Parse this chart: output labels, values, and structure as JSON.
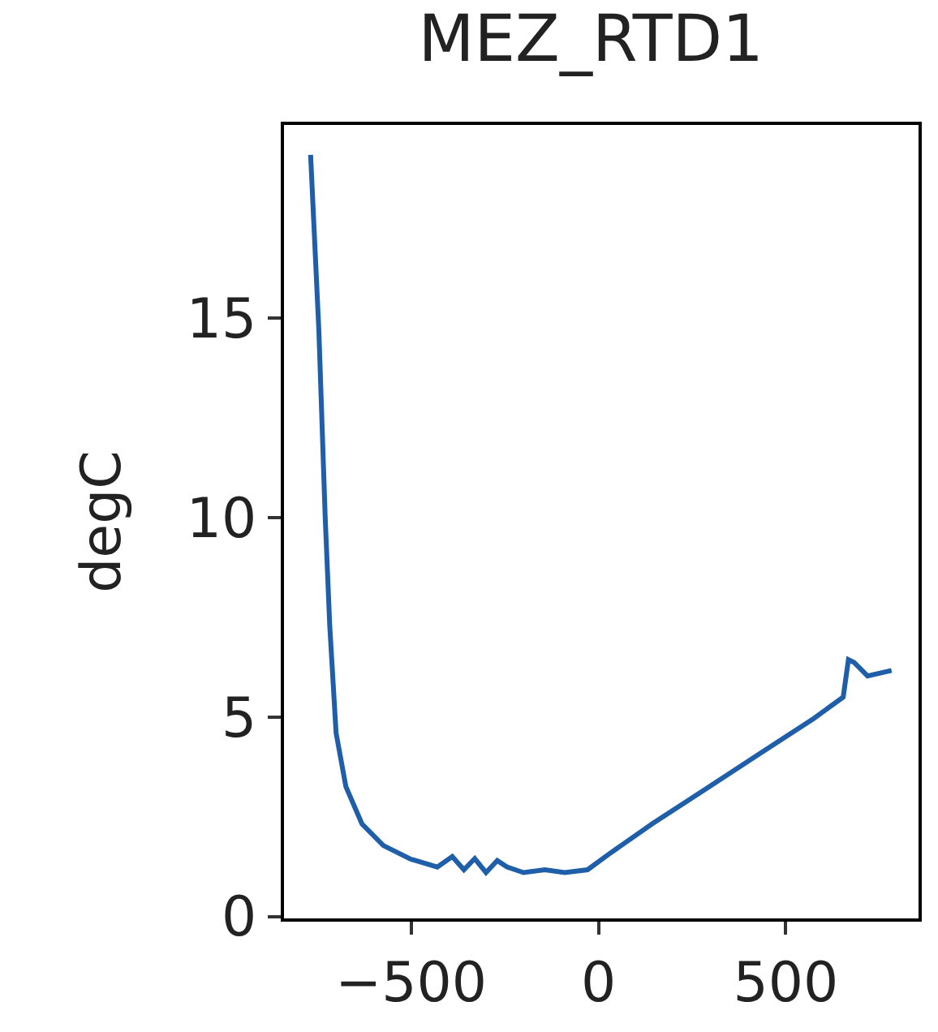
{
  "chart_data": {
    "type": "line",
    "title": "MEZ_RTD1",
    "ylabel": "degC",
    "x": [
      -768,
      -746,
      -729,
      -717,
      -700,
      -674,
      -631,
      -574,
      -502,
      -430,
      -390,
      -359,
      -330,
      -300,
      -270,
      -244,
      -200,
      -143,
      -90,
      -29,
      29,
      143,
      287,
      430,
      574,
      653,
      667,
      682,
      718,
      782
    ],
    "series": [
      {
        "color": "#1f5ea8",
        "values": [
          19.1,
          14.7,
          10.0,
          7.3,
          4.6,
          3.26,
          2.32,
          1.78,
          1.44,
          1.24,
          1.5,
          1.17,
          1.45,
          1.1,
          1.4,
          1.24,
          1.1,
          1.17,
          1.1,
          1.17,
          1.57,
          2.32,
          3.2,
          4.08,
          4.96,
          5.5,
          6.44,
          6.37,
          6.03,
          6.17
        ]
      }
    ],
    "xlim": [
      -839,
      854
    ],
    "ylim": [
      -0.05,
      19.85
    ],
    "xticks": [
      -500,
      0,
      500
    ],
    "yticks": [
      0,
      5,
      10,
      15
    ]
  }
}
